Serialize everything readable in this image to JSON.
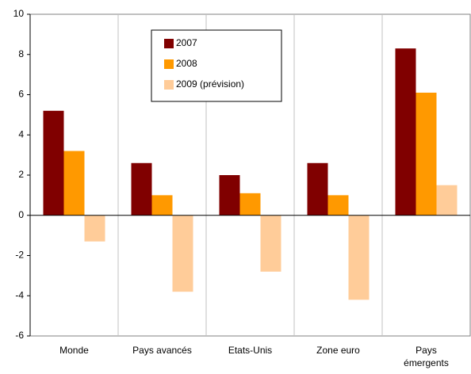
{
  "chart_data": {
    "type": "bar",
    "categories": [
      "Monde",
      "Pays avancés",
      "Etats-Unis",
      "Zone euro",
      "Pays émergents"
    ],
    "series": [
      {
        "name": "2007",
        "color": "#800000",
        "values": [
          5.2,
          2.6,
          2.0,
          2.6,
          8.3
        ]
      },
      {
        "name": "2008",
        "color": "#ff9900",
        "values": [
          3.2,
          1.0,
          1.1,
          1.0,
          6.1
        ]
      },
      {
        "name": "2009 (prévision)",
        "color": "#ffcc99",
        "values": [
          -1.3,
          -3.8,
          -2.8,
          -4.2,
          1.5
        ]
      }
    ],
    "ylim": [
      -6,
      10
    ],
    "yticks": [
      -6,
      -4,
      -2,
      0,
      2,
      4,
      6,
      8,
      10
    ],
    "grid": false
  }
}
